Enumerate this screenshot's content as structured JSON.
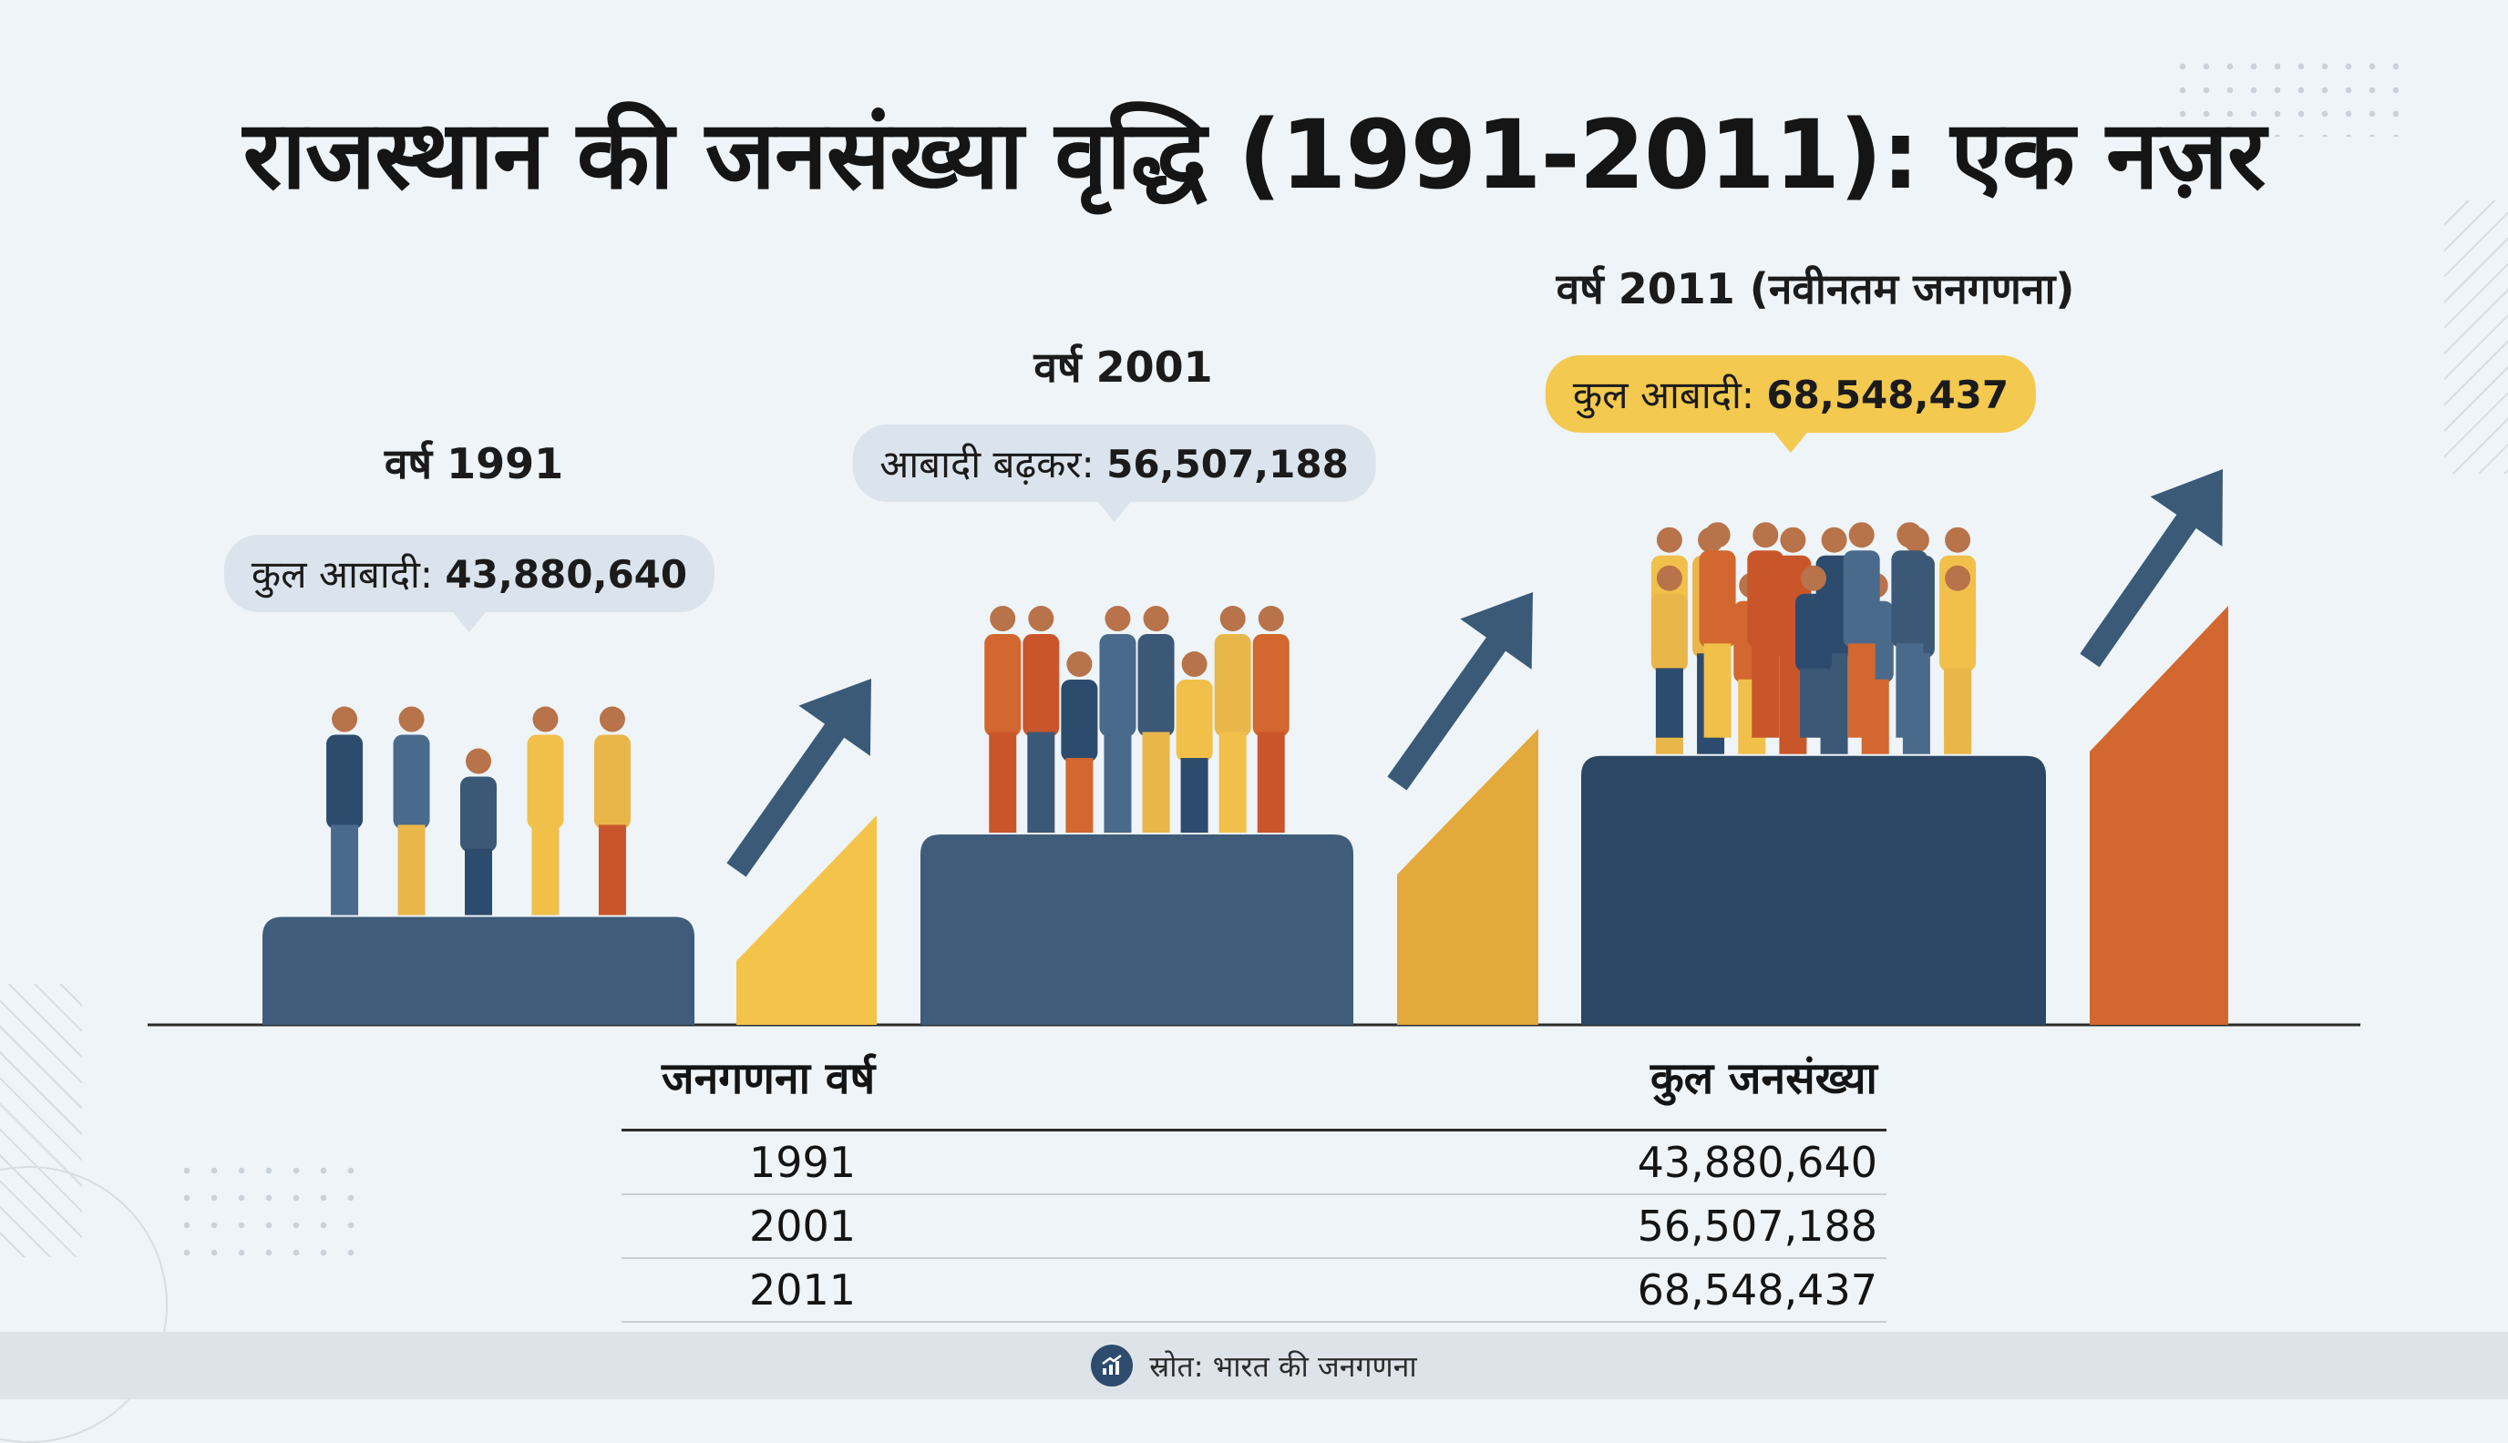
{
  "title": "राजस्थान की जनसंख्या वृद्धि (1991-2011): एक नज़र",
  "chart_data": {
    "type": "bar",
    "title": "राजस्थान की जनसंख्या वृद्धि (1991-2011): एक नज़र",
    "categories": [
      "1991",
      "2001",
      "2011"
    ],
    "values": [
      43880640,
      56507188,
      68548437
    ],
    "ylim": [
      0,
      80000000
    ],
    "labels": [
      "वर्ष 1991",
      "वर्ष 2001",
      "वर्ष 2011 (नवीनतम जनगणना)"
    ],
    "callouts": [
      {
        "prefix": "कुल आबादी:",
        "value": "43,880,640"
      },
      {
        "prefix": "आबादी बढ़कर:",
        "value": "56,507,188"
      },
      {
        "prefix": "कुल आबादी:",
        "value": "68,548,437"
      }
    ],
    "people_counts": [
      5,
      8,
      15
    ]
  },
  "table": {
    "col_year": "जनगणना वर्ष",
    "col_pop": "कुल जनसंख्या",
    "rows": [
      {
        "year": "1991",
        "pop": "43,880,640"
      },
      {
        "year": "2001",
        "pop": "56,507,188"
      },
      {
        "year": "2011",
        "pop": "68,548,437"
      }
    ]
  },
  "footer": {
    "source": "स्रोत: भारत की जनगणना",
    "icon": "chart-growth-icon"
  },
  "colors": {
    "navy": "#2c4763",
    "slate": "#3f5c7a",
    "yellow": "#f3c34a",
    "amber": "#e3a93a",
    "orange": "#d2672f",
    "arrow": "#3a5a78"
  }
}
